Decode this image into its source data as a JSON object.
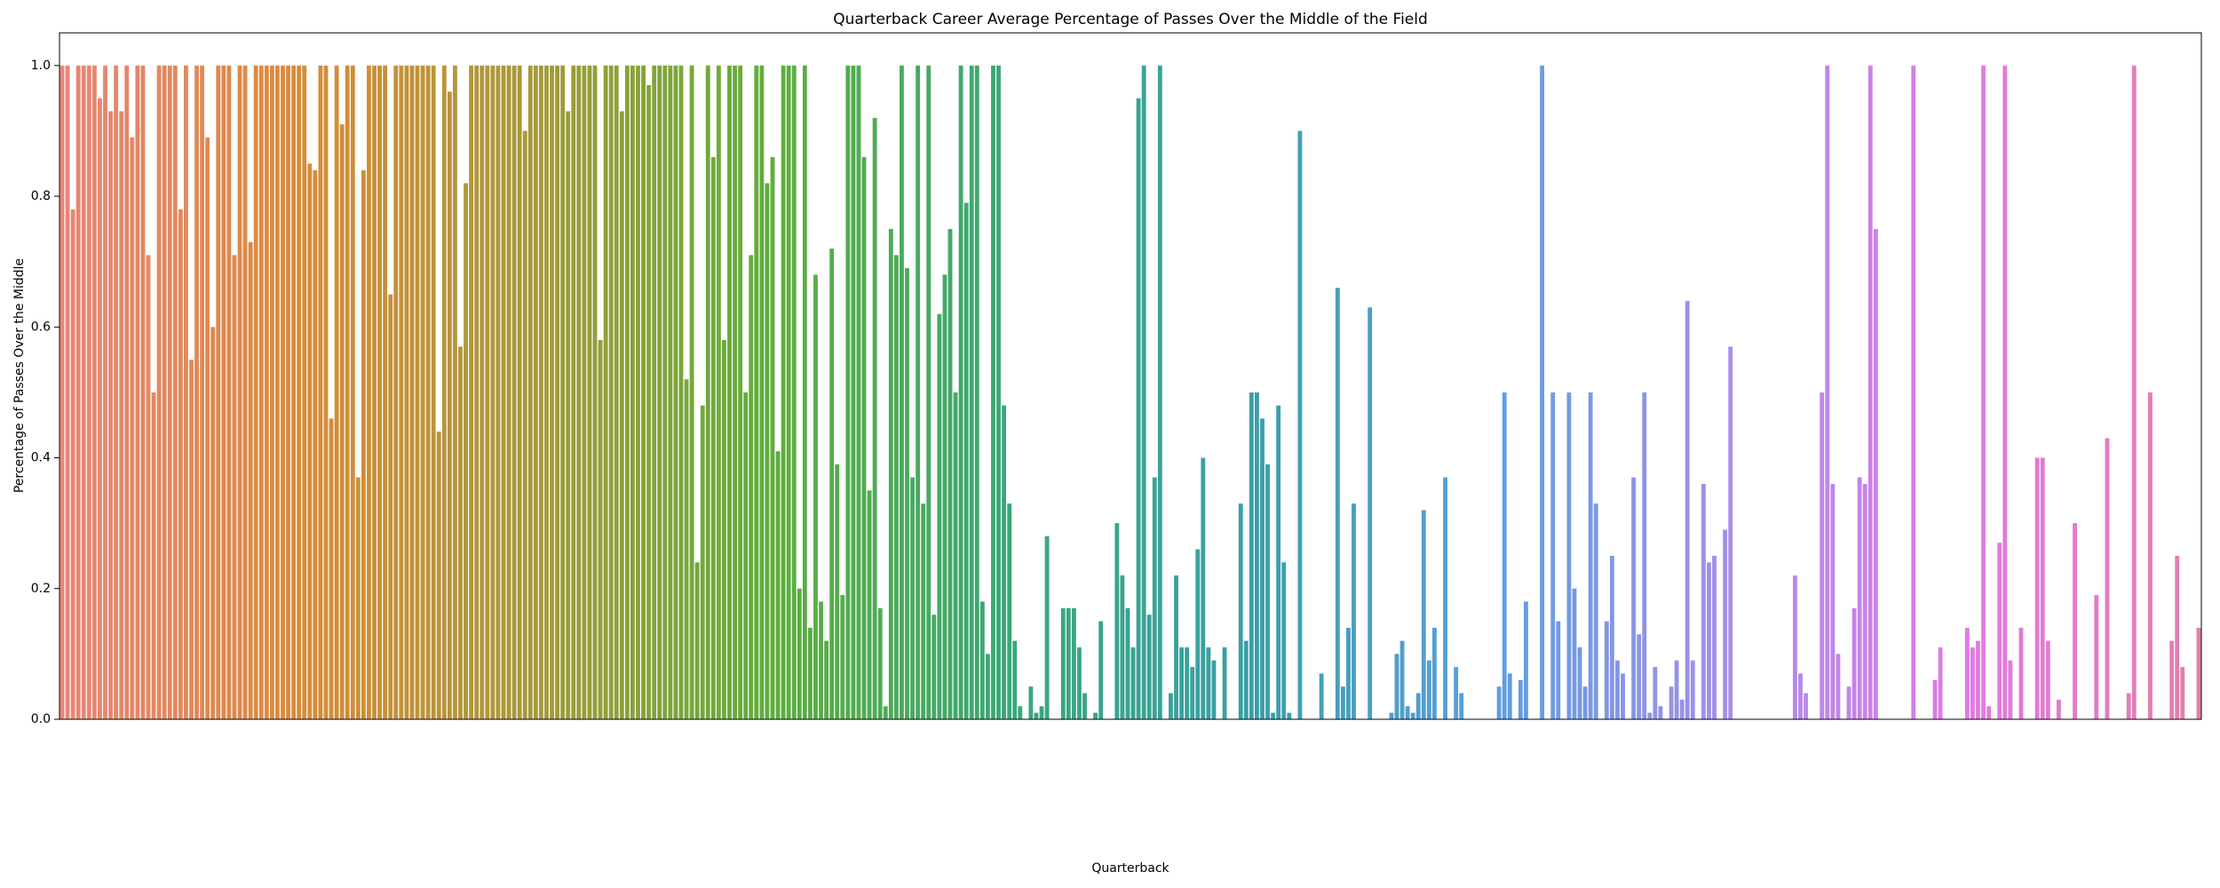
{
  "chart_data": {
    "type": "bar",
    "title": "Quarterback Career Average Percentage of Passes Over the Middle of the Field",
    "x_label": "Quarterback",
    "y_label": "Percentage of Passes Over the Middle",
    "ylim": [
      0,
      1.05
    ],
    "yticks": [
      {
        "value": 0,
        "label": "0.0"
      },
      0.2,
      0.4,
      0.6,
      0.8,
      {
        "value": 1,
        "label": "1.0"
      }
    ],
    "colors": [
      "#e8867a",
      "#d98b3a",
      "#a59a3a",
      "#5eae3c",
      "#3aa77a",
      "#3a9fa8",
      "#5a9fe0",
      "#a58fe8",
      "#e17ae6",
      "#e37ea8"
    ],
    "values": [
      1,
      1,
      0.78,
      1,
      1,
      1,
      1,
      0.95,
      1,
      0.93,
      1,
      0.93,
      1,
      0.89,
      1,
      1,
      0.71,
      0.5,
      1,
      1,
      1,
      1,
      0.78,
      1,
      0.55,
      1,
      1,
      0.89,
      0.6,
      1,
      1,
      1,
      0.71,
      1,
      1,
      0.73,
      1,
      1,
      1,
      1,
      1,
      1,
      1,
      1,
      1,
      1,
      0.85,
      0.84,
      1,
      1,
      0.46,
      1,
      0.91,
      1,
      1,
      0.37,
      0.84,
      1,
      1,
      1,
      1,
      0.65,
      1,
      1,
      1,
      1,
      1,
      1,
      1,
      1,
      0.44,
      1,
      0.96,
      1,
      0.57,
      0.82,
      1,
      1,
      1,
      1,
      1,
      1,
      1,
      1,
      1,
      1,
      0.9,
      1,
      1,
      1,
      1,
      1,
      1,
      1,
      0.93,
      1,
      1,
      1,
      1,
      1,
      0.58,
      1,
      1,
      1,
      0.93,
      1,
      1,
      1,
      1,
      0.97,
      1,
      1,
      1,
      1,
      1,
      1,
      0.52,
      1,
      0.24,
      0.48,
      1,
      0.86,
      1,
      0.58,
      1,
      1,
      1,
      0.5,
      0.71,
      1,
      1,
      0.82,
      0.86,
      0.41,
      1,
      1,
      1,
      0.2,
      1,
      0.14,
      0.68,
      0.18,
      0.12,
      0.72,
      0.39,
      0.19,
      1,
      1,
      1,
      0.86,
      0.35,
      0.92,
      0.17,
      0.02,
      0.75,
      0.71,
      1,
      0.69,
      0.37,
      1,
      0.33,
      1,
      0.16,
      0.62,
      0.68,
      0.75,
      0.5,
      1,
      0.79,
      1,
      1,
      0.18,
      0.1,
      1,
      1,
      0.48,
      0.33,
      0.12,
      0.02,
      0,
      0.05,
      0.01,
      0.02,
      0.28,
      0,
      0,
      0.17,
      0.17,
      0.17,
      0.11,
      0.04,
      0,
      0.01,
      0.15,
      0,
      0,
      0.3,
      0.22,
      0.17,
      0.11,
      0.95,
      1,
      0.16,
      0.37,
      1,
      0,
      0.04,
      0.22,
      0.11,
      0.11,
      0.08,
      0.26,
      0.4,
      0.11,
      0.09,
      0,
      0.11,
      0,
      0,
      0.33,
      0.12,
      0.5,
      0.5,
      0.46,
      0.39,
      0.01,
      0.48,
      0.24,
      0.01,
      0,
      0.9,
      0,
      0,
      0,
      0.07,
      0,
      0,
      0.66,
      0.05,
      0.14,
      0.33,
      0,
      0,
      0.63,
      0,
      0,
      0,
      0.01,
      0.1,
      0.12,
      0.02,
      0.01,
      0.04,
      0.32,
      0.09,
      0.14,
      0,
      0.37,
      0,
      0.08,
      0.04,
      0,
      0,
      0,
      0,
      0,
      0,
      0.05,
      0.5,
      0.07,
      0,
      0.06,
      0.18,
      0,
      0,
      1,
      0,
      0.5,
      0.15,
      0,
      0.5,
      0.2,
      0.11,
      0.05,
      0.5,
      0.33,
      0,
      0.15,
      0.25,
      0.09,
      0.07,
      0,
      0.37,
      0.13,
      0.5,
      0.01,
      0.08,
      0.02,
      0,
      0.05,
      0.09,
      0.03,
      0.64,
      0.09,
      0,
      0.36,
      0.24,
      0.25,
      0,
      0.29,
      0.57,
      0,
      0,
      0,
      0,
      0,
      0,
      0,
      0,
      0,
      0,
      0,
      0.22,
      0.07,
      0.04,
      0,
      0,
      0.5,
      1,
      0.36,
      0.1,
      0,
      0.05,
      0.17,
      0.37,
      0.36,
      1,
      0.75,
      0,
      0,
      0,
      0,
      0,
      0,
      1,
      0,
      0,
      0,
      0.06,
      0.11,
      0,
      0,
      0,
      0,
      0.14,
      0.11,
      0.12,
      1,
      0.02,
      0,
      0.27,
      1,
      0.09,
      0,
      0.14,
      0,
      0,
      0.4,
      0.4,
      0.12,
      0,
      0.03,
      0,
      0,
      0.3,
      0,
      0,
      0,
      0.19,
      0,
      0.43,
      0,
      0,
      0,
      0.04,
      1,
      0,
      0,
      0.5,
      0,
      0,
      0,
      0.12,
      0.25,
      0.08,
      0,
      0,
      0.14
    ]
  }
}
